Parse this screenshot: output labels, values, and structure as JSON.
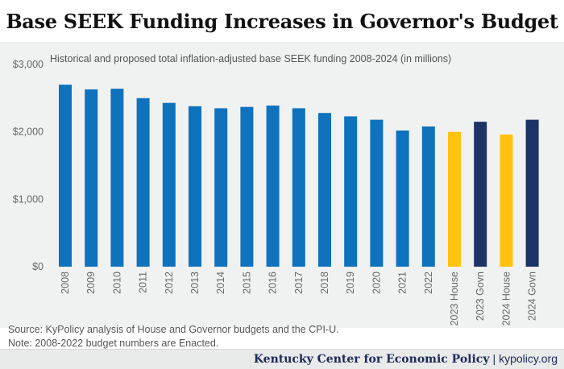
{
  "title": "Base SEEK Funding Increases in Governor's Budget",
  "source_line1": "Source: KyPolicy analysis of House and Governor budgets and the CPI-U.",
  "source_line2": "Note: 2008-2022 budget numbers are Enacted.",
  "footer": {
    "org": "Kentucky Center for Economic Policy",
    "separator": "|",
    "url": "kypolicy.org"
  },
  "colors": {
    "enacted": "#0e72bd",
    "house": "#ffc20e",
    "governor": "#1c3367"
  },
  "chart_data": {
    "type": "bar",
    "title": "Base SEEK Funding Increases in Governor's Budget",
    "subtitle": "Historical and proposed total inflation-adjusted base SEEK funding 2008-2024 (in millions)",
    "categories": [
      "2008",
      "2009",
      "2010",
      "2011",
      "2012",
      "2013",
      "2014",
      "2015",
      "2016",
      "2017",
      "2018",
      "2019",
      "2020",
      "2021",
      "2022",
      "2023 House",
      "2023 Govn",
      "2024 House",
      "2024 Govn"
    ],
    "values": [
      2700,
      2630,
      2640,
      2500,
      2430,
      2380,
      2350,
      2370,
      2390,
      2350,
      2280,
      2230,
      2180,
      2020,
      2080,
      2000,
      2150,
      1960,
      2180
    ],
    "bar_groups": [
      "enacted",
      "enacted",
      "enacted",
      "enacted",
      "enacted",
      "enacted",
      "enacted",
      "enacted",
      "enacted",
      "enacted",
      "enacted",
      "enacted",
      "enacted",
      "enacted",
      "enacted",
      "house",
      "governor",
      "house",
      "governor"
    ],
    "yticks": [
      "$0",
      "$1,000",
      "$2,000",
      "$3,000"
    ],
    "ytick_values": [
      0,
      1000,
      2000,
      3000
    ],
    "ylim": [
      0,
      3000
    ],
    "xlabel": "",
    "ylabel": "",
    "grid": false,
    "legend": "none"
  }
}
